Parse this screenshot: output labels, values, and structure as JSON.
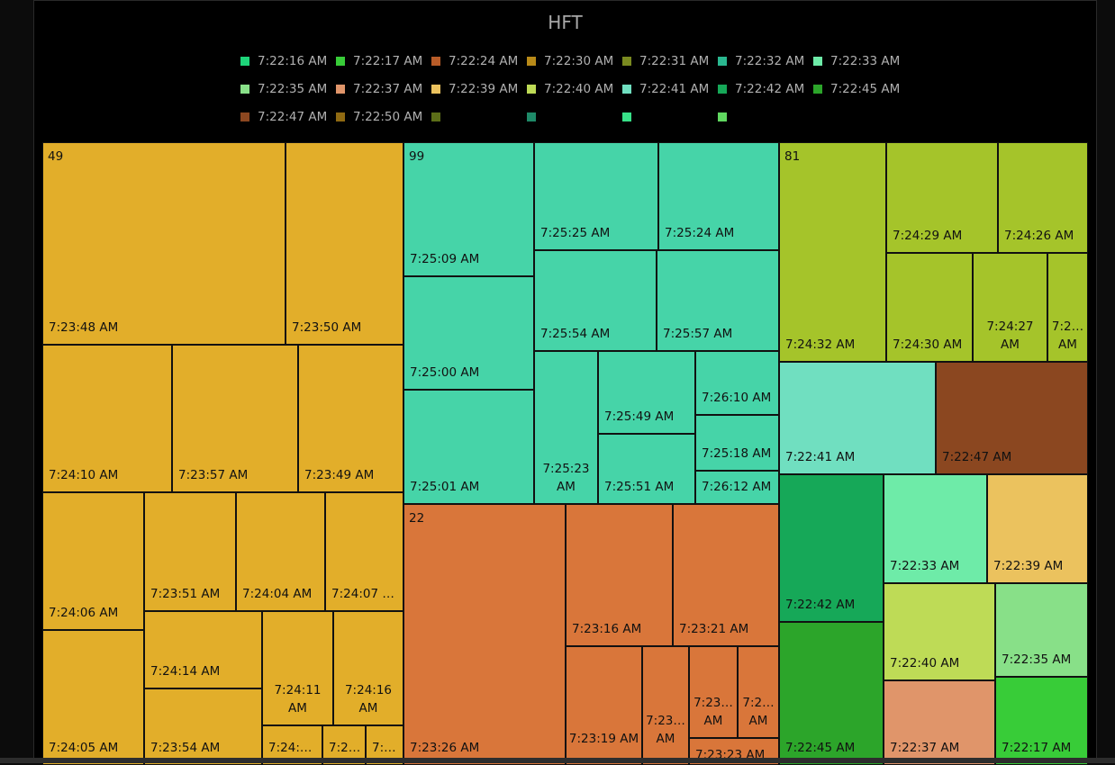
{
  "chart_data": {
    "type": "treemap",
    "title": "HFT",
    "legend": [
      {
        "label": "7:22:16 AM",
        "color": "#1ED57A"
      },
      {
        "label": "7:22:17 AM",
        "color": "#38CC38"
      },
      {
        "label": "7:22:24 AM",
        "color": "#B85C28"
      },
      {
        "label": "7:22:30 AM",
        "color": "#B88A18"
      },
      {
        "label": "7:22:31 AM",
        "color": "#7A8A20"
      },
      {
        "label": "7:22:32 AM",
        "color": "#2AB890"
      },
      {
        "label": "7:22:33 AM",
        "color": "#6EEBA8"
      },
      {
        "label": "7:22:35 AM",
        "color": "#88E088"
      },
      {
        "label": "7:22:37 AM",
        "color": "#E0956A"
      },
      {
        "label": "7:22:39 AM",
        "color": "#EBC25E"
      },
      {
        "label": "7:22:40 AM",
        "color": "#BEDB56"
      },
      {
        "label": "7:22:41 AM",
        "color": "#70DFC0"
      },
      {
        "label": "7:22:42 AM",
        "color": "#16A858"
      },
      {
        "label": "7:22:45 AM",
        "color": "#2CA52A"
      },
      {
        "label": "7:22:47 AM",
        "color": "#8B4720"
      },
      {
        "label": "7:22:50 AM",
        "color": "#8F6A12"
      },
      {
        "label": "",
        "color": "#5C6E18"
      },
      {
        "label": "",
        "color": "#1E8A68"
      },
      {
        "label": "",
        "color": "#38E088"
      },
      {
        "label": "",
        "color": "#60D860"
      }
    ],
    "groups": [
      {
        "name": "49",
        "color": "#E2AE2A",
        "leaves": [
          "7:23:48 AM",
          "7:23:50 AM",
          "7:24:10 AM",
          "7:23:57 AM",
          "7:23:49 AM",
          "7:24:06 AM",
          "7:24:05 AM",
          "7:23:51 AM",
          "7:24:04 AM",
          "7:24:07 AM",
          "7:24:14 AM",
          "7:23:54 AM",
          "7:24:11 AM",
          "7:24:16 AM",
          "7:24:1…",
          "7:2…",
          "7:…"
        ]
      },
      {
        "name": "99",
        "color": "#46D4A8",
        "leaves": [
          "7:25:09 AM",
          "7:25:25 AM",
          "7:25:24 AM",
          "7:25:00 AM",
          "7:25:01 AM",
          "7:25:54 AM",
          "7:25:57 AM",
          "7:25:23 AM",
          "7:25:49 AM",
          "7:25:51 AM",
          "7:26:10 AM",
          "7:25:18 AM",
          "7:26:12 AM"
        ]
      },
      {
        "name": "22",
        "color": "#D9763A",
        "leaves": [
          "7:23:26 AM",
          "7:23:16 AM",
          "7:23:21 AM",
          "7:23:19 AM",
          "7:23… AM",
          "7:23… AM",
          "7:2… AM",
          "7:23:23 AM"
        ]
      },
      {
        "name": "81",
        "color": "#A5C42A",
        "leaves": [
          "7:24:32 AM",
          "7:24:29 AM",
          "7:24:26 AM",
          "7:24:30 AM",
          "7:24:27 AM",
          "7:2… AM"
        ]
      },
      {
        "name": "",
        "color": "#70DFC0",
        "leaves": [
          "7:22:41 AM"
        ]
      },
      {
        "name": "",
        "color": "#8B4720",
        "leaves": [
          "7:22:47 AM"
        ]
      },
      {
        "name": "",
        "color": "#16A858",
        "leaves": [
          "7:22:42 AM"
        ]
      },
      {
        "name": "",
        "color": "#2CA52A",
        "leaves": [
          "7:22:45 AM"
        ]
      },
      {
        "name": "",
        "color": "#6EEBA8",
        "leaves": [
          "7:22:33 AM"
        ]
      },
      {
        "name": "",
        "color": "#EBC25E",
        "leaves": [
          "7:22:39 AM"
        ]
      },
      {
        "name": "",
        "color": "#BEDB56",
        "leaves": [
          "7:22:40 AM"
        ]
      },
      {
        "name": "",
        "color": "#88E088",
        "leaves": [
          "7:22:35 AM"
        ]
      },
      {
        "name": "",
        "color": "#E0956A",
        "leaves": [
          "7:22:37 AM"
        ]
      },
      {
        "name": "",
        "color": "#38CC38",
        "leaves": [
          "7:22:17 AM"
        ]
      }
    ]
  }
}
